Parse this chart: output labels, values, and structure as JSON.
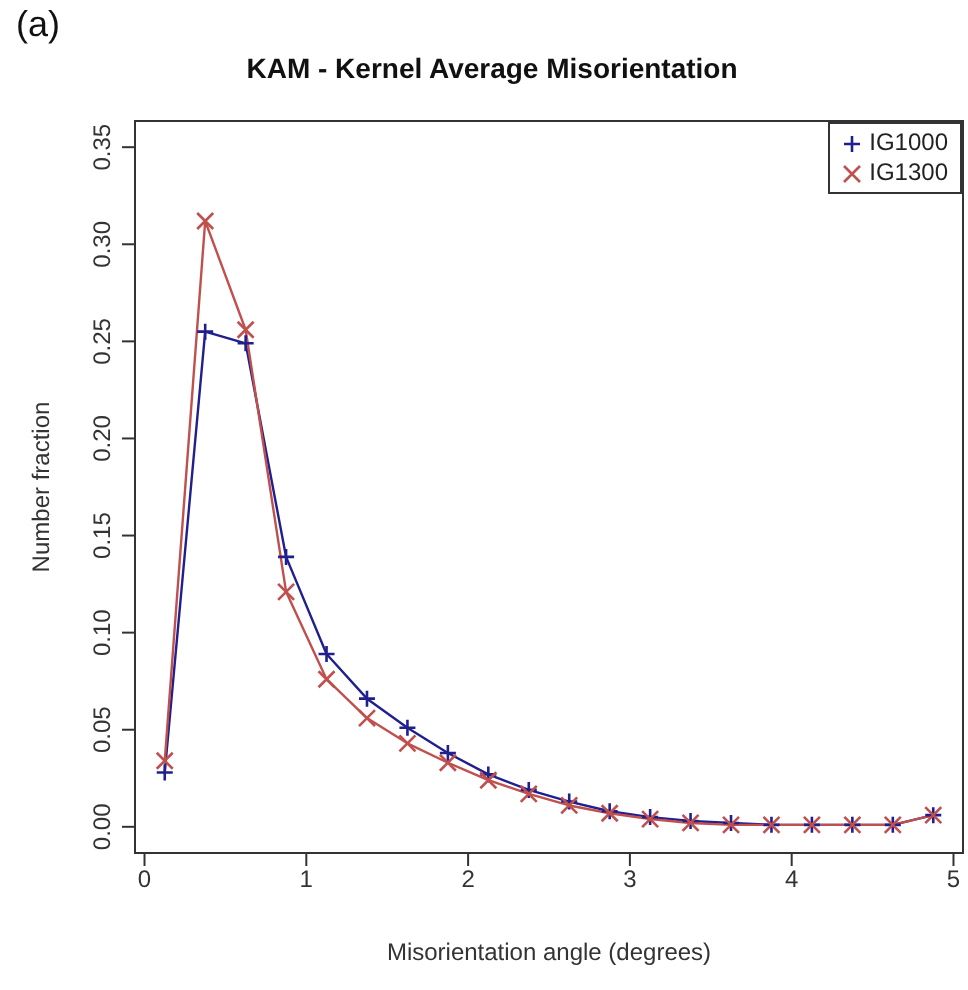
{
  "chart_data": {
    "type": "line",
    "title": "KAM - Kernel Average Misorientation",
    "xlabel": "Misorientation angle (degrees)",
    "ylabel": "Number fraction",
    "annotations": [
      "(a)"
    ],
    "x": [
      0.125,
      0.375,
      0.625,
      0.875,
      1.125,
      1.375,
      1.625,
      1.875,
      2.125,
      2.375,
      2.625,
      2.875,
      3.125,
      3.375,
      3.625,
      3.875,
      4.125,
      4.375,
      4.625,
      4.875
    ],
    "series": [
      {
        "name": "IG1000",
        "color": "#1f1f8f",
        "marker": "plus",
        "values": [
          0.028,
          0.255,
          0.249,
          0.139,
          0.089,
          0.066,
          0.051,
          0.038,
          0.027,
          0.019,
          0.013,
          0.008,
          0.005,
          0.003,
          0.002,
          0.001,
          0.001,
          0.001,
          0.001,
          0.006
        ]
      },
      {
        "name": "IG1300",
        "color": "#c0504d",
        "marker": "cross",
        "values": [
          0.034,
          0.312,
          0.256,
          0.121,
          0.076,
          0.056,
          0.043,
          0.033,
          0.024,
          0.017,
          0.011,
          0.007,
          0.004,
          0.002,
          0.001,
          0.001,
          0.001,
          0.001,
          0.001,
          0.006
        ]
      }
    ],
    "xlim": [
      -0.065,
      5.065
    ],
    "xticks": [
      0,
      1,
      2,
      3,
      4,
      5
    ],
    "ylim": [
      -0.014,
      0.364
    ],
    "yticks": [
      {
        "value": 0,
        "label": "0.00"
      },
      {
        "value": 0.05,
        "label": "0.05"
      },
      {
        "value": 0.1,
        "label": "0.10"
      },
      {
        "value": 0.15,
        "label": "0.15"
      },
      {
        "value": 0.2,
        "label": "0.20"
      },
      {
        "value": 0.25,
        "label": "0.25"
      },
      {
        "value": 0.3,
        "label": "0.30"
      },
      {
        "value": 0.35,
        "label": "0.35"
      }
    ],
    "grid": false,
    "legend": "top right",
    "line_style": "solid"
  }
}
